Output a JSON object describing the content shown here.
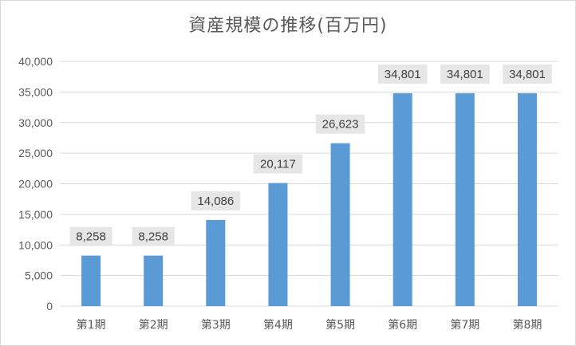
{
  "chart_data": {
    "type": "bar",
    "title": "資産規模の推移(百万円)",
    "categories": [
      "第1期",
      "第2期",
      "第3期",
      "第4期",
      "第5期",
      "第6期",
      "第7期",
      "第8期"
    ],
    "values": [
      8258,
      8258,
      14086,
      20117,
      26623,
      34801,
      34801,
      34801
    ],
    "data_labels": [
      "8,258",
      "8,258",
      "14,086",
      "20,117",
      "26,623",
      "34,801",
      "34,801",
      "34,801"
    ],
    "ylim": [
      0,
      40000
    ],
    "yticks": [
      0,
      5000,
      10000,
      15000,
      20000,
      25000,
      30000,
      35000,
      40000
    ],
    "ytick_labels": [
      "0",
      "5,000",
      "10,000",
      "15,000",
      "20,000",
      "25,000",
      "30,000",
      "35,000",
      "40,000"
    ],
    "xlabel": "",
    "ylabel": "",
    "grid": true,
    "legend": "none",
    "bar_color": "#5b9bd5",
    "grid_color": "#d9d9d9",
    "label_box_color": "#e7e6e6"
  }
}
